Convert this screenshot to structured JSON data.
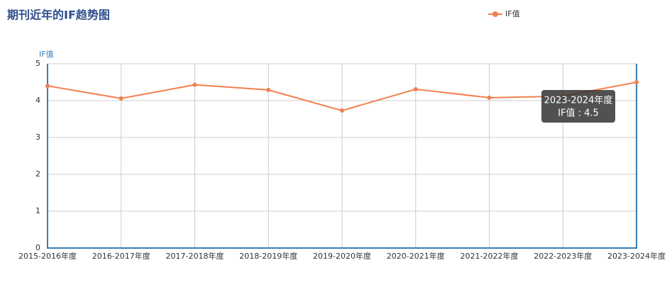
{
  "chart_data": {
    "type": "line",
    "title": "期刊近年的IF趋势图",
    "y_label": "IF值",
    "categories": [
      "2015-2016年度",
      "2016-2017年度",
      "2017-2018年度",
      "2018-2019年度",
      "2019-2020年度",
      "2020-2021年度",
      "2021-2022年度",
      "2022-2023年度",
      "2023-2024年度"
    ],
    "series": [
      {
        "name": "IF值",
        "color": "#f47f4e",
        "values": [
          4.4,
          4.06,
          4.43,
          4.29,
          3.73,
          4.31,
          4.08,
          4.12,
          4.5
        ]
      }
    ],
    "ylim": [
      0,
      5
    ],
    "yticks": [
      0,
      1,
      2,
      3,
      4,
      5
    ],
    "grid": true,
    "legend": "top-right",
    "tooltip": {
      "title": "2023-2024年度",
      "label": "IF值 : 4.5"
    }
  }
}
